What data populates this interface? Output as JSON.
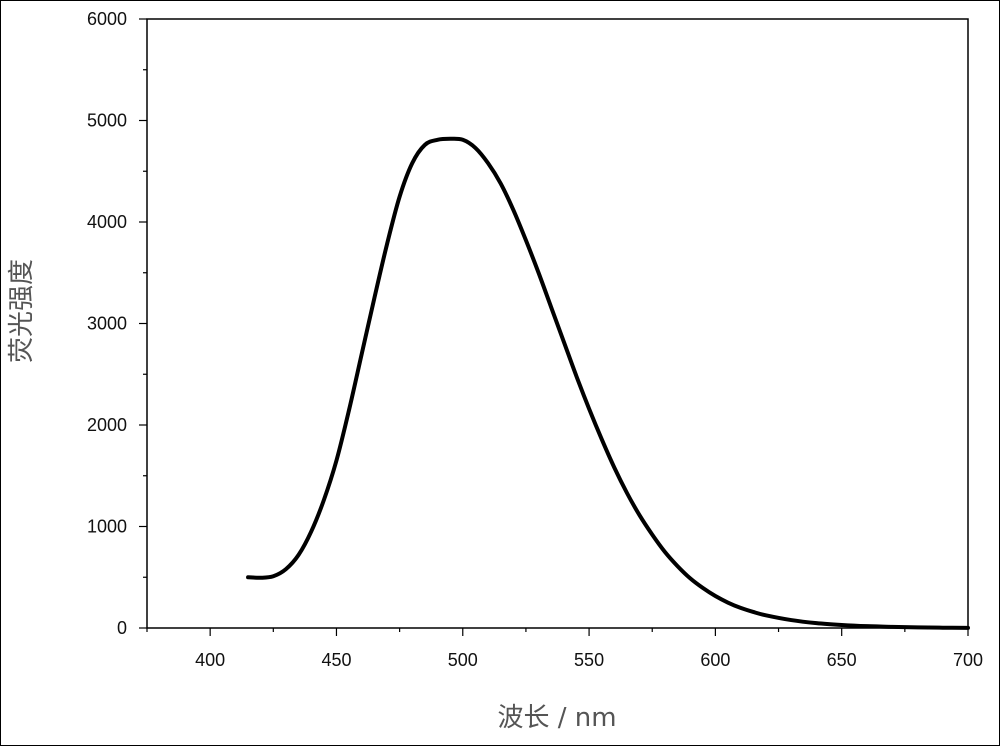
{
  "chart_data": {
    "type": "line",
    "title": "",
    "xlabel": "波长 / nm",
    "ylabel": "荧光强度",
    "xlim": [
      375,
      700
    ],
    "ylim": [
      0,
      6000
    ],
    "xticks": [
      400,
      450,
      500,
      550,
      600,
      650,
      700
    ],
    "yticks": [
      0,
      1000,
      2000,
      3000,
      4000,
      5000,
      6000
    ],
    "xtick_labels": [
      "400",
      "450",
      "500",
      "550",
      "600",
      "650",
      "700"
    ],
    "ytick_labels": [
      "0",
      "1000",
      "2000",
      "3000",
      "4000",
      "5000",
      "6000"
    ],
    "grid": false,
    "series": [
      {
        "color": "#000000",
        "x": [
          415,
          420,
          425,
          430,
          435,
          440,
          445,
          450,
          455,
          460,
          465,
          470,
          475,
          480,
          485,
          490,
          495,
          500,
          505,
          510,
          515,
          520,
          525,
          530,
          535,
          540,
          545,
          550,
          555,
          560,
          565,
          570,
          575,
          580,
          585,
          590,
          595,
          600,
          605,
          610,
          615,
          620,
          630,
          640,
          650,
          660,
          670,
          680,
          690,
          700
        ],
        "y": [
          500,
          495,
          510,
          580,
          720,
          950,
          1260,
          1650,
          2150,
          2700,
          3250,
          3780,
          4250,
          4580,
          4760,
          4810,
          4820,
          4810,
          4730,
          4580,
          4380,
          4120,
          3820,
          3500,
          3160,
          2820,
          2480,
          2160,
          1860,
          1580,
          1330,
          1110,
          920,
          750,
          610,
          490,
          395,
          315,
          250,
          198,
          158,
          125,
          78,
          48,
          30,
          18,
          11,
          6,
          3,
          1
        ]
      }
    ]
  }
}
